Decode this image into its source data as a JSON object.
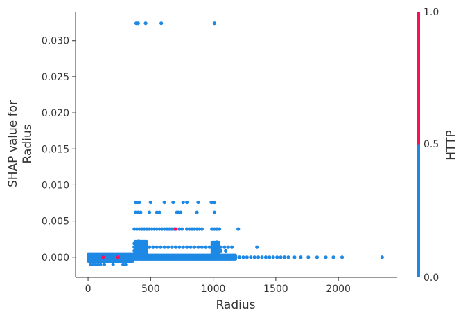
{
  "chart_data": {
    "type": "scatter",
    "title": "",
    "xlabel": "Radius",
    "ylabel_lines": [
      "SHAP value for",
      "Radius"
    ],
    "xlim": [
      -100,
      2470
    ],
    "ylim": [
      -0.0028,
      0.034
    ],
    "xticks": [
      0,
      500,
      1000,
      1500,
      2000
    ],
    "xtick_labels": [
      "0",
      "500",
      "1000",
      "1500",
      "2000"
    ],
    "yticks": [
      0.0,
      0.005,
      0.01,
      0.015,
      0.02,
      0.025,
      0.03
    ],
    "ytick_labels": [
      "0.000",
      "0.005",
      "0.010",
      "0.015",
      "0.020",
      "0.025",
      "0.030"
    ],
    "grid": false,
    "colorbar": {
      "label": "HTTP",
      "tick_labels": [
        "0.0",
        "0.5",
        "1.0"
      ],
      "low_color": "#1E88E5",
      "high_color": "#FF0D57"
    },
    "series": [
      {
        "name": "HTTP = 0",
        "color": "#1E88E5",
        "points": [
          [
            385,
            0.0324
          ],
          [
            400,
            0.0324
          ],
          [
            460,
            0.0324
          ],
          [
            585,
            0.0324
          ],
          [
            1010,
            0.0324
          ],
          [
            380,
            0.0076
          ],
          [
            390,
            0.0076
          ],
          [
            400,
            0.0076
          ],
          [
            410,
            0.0076
          ],
          [
            500,
            0.0076
          ],
          [
            610,
            0.0076
          ],
          [
            680,
            0.0076
          ],
          [
            760,
            0.0076
          ],
          [
            790,
            0.0076
          ],
          [
            880,
            0.0076
          ],
          [
            985,
            0.0076
          ],
          [
            1000,
            0.0076
          ],
          [
            1010,
            0.0076
          ],
          [
            380,
            0.0062
          ],
          [
            400,
            0.0062
          ],
          [
            420,
            0.0062
          ],
          [
            490,
            0.0062
          ],
          [
            550,
            0.0062
          ],
          [
            570,
            0.0062
          ],
          [
            710,
            0.0062
          ],
          [
            720,
            0.0062
          ],
          [
            740,
            0.0062
          ],
          [
            870,
            0.0062
          ],
          [
            1010,
            0.0062
          ],
          [
            370,
            0.0039
          ],
          [
            390,
            0.0039
          ],
          [
            410,
            0.0039
          ],
          [
            430,
            0.0039
          ],
          [
            450,
            0.0039
          ],
          [
            470,
            0.0039
          ],
          [
            490,
            0.0039
          ],
          [
            510,
            0.0039
          ],
          [
            530,
            0.0039
          ],
          [
            550,
            0.0039
          ],
          [
            570,
            0.0039
          ],
          [
            590,
            0.0039
          ],
          [
            610,
            0.0039
          ],
          [
            630,
            0.0039
          ],
          [
            650,
            0.0039
          ],
          [
            670,
            0.0039
          ],
          [
            690,
            0.0039
          ],
          [
            730,
            0.0039
          ],
          [
            750,
            0.0039
          ],
          [
            790,
            0.0039
          ],
          [
            810,
            0.0039
          ],
          [
            830,
            0.0039
          ],
          [
            850,
            0.0039
          ],
          [
            870,
            0.0039
          ],
          [
            890,
            0.0039
          ],
          [
            910,
            0.0039
          ],
          [
            990,
            0.0039
          ],
          [
            1010,
            0.0039
          ],
          [
            1030,
            0.0039
          ],
          [
            1050,
            0.0039
          ],
          [
            1200,
            0.0039
          ],
          [
            370,
            0.0019
          ],
          [
            380,
            0.0021
          ],
          [
            390,
            0.0017
          ],
          [
            405,
            0.0022
          ],
          [
            420,
            0.0019
          ],
          [
            440,
            0.0017
          ],
          [
            1000,
            0.0018
          ],
          [
            1020,
            0.0017
          ],
          [
            1030,
            0.0021
          ],
          [
            370,
            0.0014
          ],
          [
            400,
            0.0014
          ],
          [
            430,
            0.0014
          ],
          [
            460,
            0.0014
          ],
          [
            490,
            0.0014
          ],
          [
            520,
            0.0014
          ],
          [
            550,
            0.0014
          ],
          [
            580,
            0.0014
          ],
          [
            610,
            0.0014
          ],
          [
            640,
            0.0014
          ],
          [
            670,
            0.0014
          ],
          [
            700,
            0.0014
          ],
          [
            730,
            0.0014
          ],
          [
            760,
            0.0014
          ],
          [
            790,
            0.0014
          ],
          [
            820,
            0.0014
          ],
          [
            850,
            0.0014
          ],
          [
            880,
            0.0014
          ],
          [
            910,
            0.0014
          ],
          [
            940,
            0.0014
          ],
          [
            970,
            0.0014
          ],
          [
            1000,
            0.0014
          ],
          [
            1030,
            0.0014
          ],
          [
            1060,
            0.0014
          ],
          [
            1090,
            0.0014
          ],
          [
            1120,
            0.0014
          ],
          [
            1150,
            0.0014
          ],
          [
            1350,
            0.0014
          ],
          [
            370,
            0.0009
          ],
          [
            400,
            0.0009
          ],
          [
            430,
            0.0009
          ],
          [
            460,
            0.0009
          ],
          [
            1000,
            0.0009
          ],
          [
            1030,
            0.0009
          ],
          [
            1060,
            0.0009
          ],
          [
            1100,
            0.0009
          ],
          [
            380,
            0.0006
          ],
          [
            410,
            0.0006
          ],
          [
            1000,
            0.0006
          ],
          [
            1040,
            0.0006
          ],
          [
            380,
            0.0003
          ],
          [
            420,
            0.0003
          ],
          [
            990,
            0.0003
          ],
          [
            1030,
            0.0003
          ],
          [
            10,
            0.0
          ],
          [
            30,
            0.0
          ],
          [
            60,
            0.0
          ],
          [
            90,
            0.0
          ],
          [
            130,
            0.0
          ],
          [
            160,
            0.0
          ],
          [
            190,
            0.0
          ],
          [
            220,
            0.0
          ],
          [
            250,
            0.0
          ],
          [
            280,
            0.0
          ],
          [
            310,
            0.0
          ],
          [
            340,
            0.0
          ],
          [
            370,
            0.0
          ],
          [
            400,
            0.0
          ],
          [
            430,
            0.0
          ],
          [
            460,
            0.0
          ],
          [
            490,
            0.0
          ],
          [
            520,
            0.0
          ],
          [
            550,
            0.0
          ],
          [
            580,
            0.0
          ],
          [
            610,
            0.0
          ],
          [
            640,
            0.0
          ],
          [
            670,
            0.0
          ],
          [
            700,
            0.0
          ],
          [
            730,
            0.0
          ],
          [
            760,
            0.0
          ],
          [
            790,
            0.0
          ],
          [
            820,
            0.0
          ],
          [
            850,
            0.0
          ],
          [
            880,
            0.0
          ],
          [
            910,
            0.0
          ],
          [
            940,
            0.0
          ],
          [
            970,
            0.0
          ],
          [
            1000,
            0.0
          ],
          [
            1030,
            0.0
          ],
          [
            1060,
            0.0
          ],
          [
            1090,
            0.0
          ],
          [
            1120,
            0.0
          ],
          [
            1150,
            0.0
          ],
          [
            1180,
            0.0
          ],
          [
            1210,
            0.0
          ],
          [
            1240,
            0.0
          ],
          [
            1270,
            0.0
          ],
          [
            1300,
            0.0
          ],
          [
            1330,
            0.0
          ],
          [
            1360,
            0.0
          ],
          [
            1390,
            0.0
          ],
          [
            1420,
            0.0
          ],
          [
            1450,
            0.0
          ],
          [
            1480,
            0.0
          ],
          [
            1510,
            0.0
          ],
          [
            1540,
            0.0
          ],
          [
            1570,
            0.0
          ],
          [
            1600,
            0.0
          ],
          [
            1650,
            0.0
          ],
          [
            1700,
            0.0
          ],
          [
            1760,
            0.0
          ],
          [
            1830,
            0.0
          ],
          [
            1900,
            0.0
          ],
          [
            1960,
            0.0
          ],
          [
            2030,
            0.0
          ],
          [
            2350,
            0.0
          ],
          [
            20,
            -0.0004
          ],
          [
            60,
            -0.0004
          ],
          [
            100,
            -0.0004
          ],
          [
            150,
            -0.0004
          ],
          [
            200,
            -0.0004
          ],
          [
            260,
            -0.0004
          ],
          [
            300,
            -0.0004
          ],
          [
            20,
            -0.001
          ],
          [
            40,
            -0.001
          ],
          [
            60,
            -0.001
          ],
          [
            80,
            -0.001
          ],
          [
            100,
            -0.001
          ],
          [
            130,
            -0.001
          ],
          [
            200,
            -0.001
          ],
          [
            280,
            -0.001
          ],
          [
            300,
            -0.001
          ]
        ]
      },
      {
        "name": "HTTP = 1",
        "color": "#FF0D57",
        "points": [
          [
            120,
            0.0
          ],
          [
            240,
            0.0
          ],
          [
            700,
            0.0039
          ]
        ]
      }
    ],
    "dense_bands": [
      {
        "x": [
          0,
          1180
        ],
        "y": [
          -0.0003,
          0.0003
        ]
      },
      {
        "x": [
          0,
          360
        ],
        "y": [
          -0.0006,
          0.0005
        ]
      },
      {
        "x": [
          375,
          470
        ],
        "y": [
          0.0003,
          0.0022
        ]
      },
      {
        "x": [
          990,
          1045
        ],
        "y": [
          0.0003,
          0.0021
        ]
      }
    ]
  }
}
